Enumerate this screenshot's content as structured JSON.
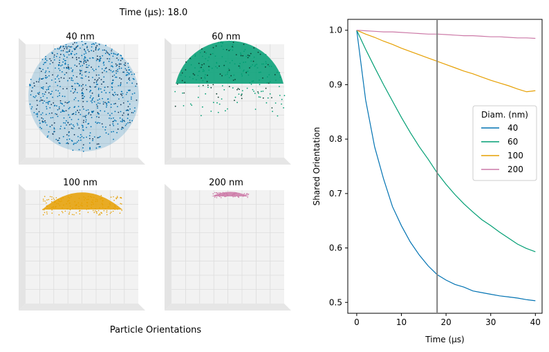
{
  "figure": {
    "time_label": "Time (µs): 18.0",
    "left_caption": "Particle Orientations"
  },
  "panels": [
    {
      "title": "40 nm",
      "color": "#0072b2",
      "dot_density": "dense"
    },
    {
      "title": "60 nm",
      "color": "#009e73",
      "dot_density": "dense"
    },
    {
      "title": "100 nm",
      "color": "#e69f00",
      "dot_density": "cap"
    },
    {
      "title": "200 nm",
      "color": "#cc79a7",
      "dot_density": "thin-cap"
    }
  ],
  "chart_data": {
    "type": "line",
    "xlabel": "Time (µs)",
    "ylabel": "Shared Orientation",
    "xlim": [
      -2,
      41.5
    ],
    "ylim": [
      0.48,
      1.02
    ],
    "xticks": [
      0,
      10,
      20,
      30,
      40
    ],
    "yticks": [
      0.5,
      0.6,
      0.7,
      0.8,
      0.9,
      1.0
    ],
    "xtick_labels": [
      "0",
      "10",
      "20",
      "30",
      "40"
    ],
    "ytick_labels": [
      "0.5",
      "0.6",
      "0.7",
      "0.8",
      "0.9",
      "1.0"
    ],
    "grid": false,
    "current_time_marker": 18,
    "legend": {
      "title": "Diam. (nm)",
      "placement": "center-right"
    },
    "x": [
      0,
      2,
      4,
      6,
      8,
      10,
      12,
      14,
      16,
      18,
      20,
      22,
      24,
      26,
      28,
      30,
      32,
      34,
      36,
      38,
      40
    ],
    "series": [
      {
        "name": "40",
        "color": "#0072b2",
        "values": [
          1.0,
          0.872,
          0.786,
          0.727,
          0.676,
          0.641,
          0.611,
          0.587,
          0.567,
          0.551,
          0.541,
          0.533,
          0.528,
          0.521,
          0.518,
          0.515,
          0.512,
          0.51,
          0.508,
          0.505,
          0.503
        ]
      },
      {
        "name": "60",
        "color": "#009e73",
        "values": [
          1.0,
          0.965,
          0.932,
          0.9,
          0.87,
          0.84,
          0.812,
          0.786,
          0.763,
          0.738,
          0.717,
          0.698,
          0.681,
          0.666,
          0.652,
          0.641,
          0.629,
          0.618,
          0.607,
          0.599,
          0.593
        ]
      },
      {
        "name": "100",
        "color": "#e69f00",
        "values": [
          1.0,
          0.993,
          0.987,
          0.98,
          0.974,
          0.967,
          0.961,
          0.955,
          0.949,
          0.943,
          0.937,
          0.931,
          0.925,
          0.92,
          0.914,
          0.908,
          0.903,
          0.898,
          0.892,
          0.887,
          0.889
        ]
      },
      {
        "name": "200",
        "color": "#cc79a7",
        "values": [
          1.0,
          0.999,
          0.998,
          0.997,
          0.997,
          0.996,
          0.995,
          0.994,
          0.993,
          0.993,
          0.992,
          0.991,
          0.99,
          0.99,
          0.989,
          0.988,
          0.988,
          0.987,
          0.986,
          0.986,
          0.985
        ]
      }
    ]
  }
}
